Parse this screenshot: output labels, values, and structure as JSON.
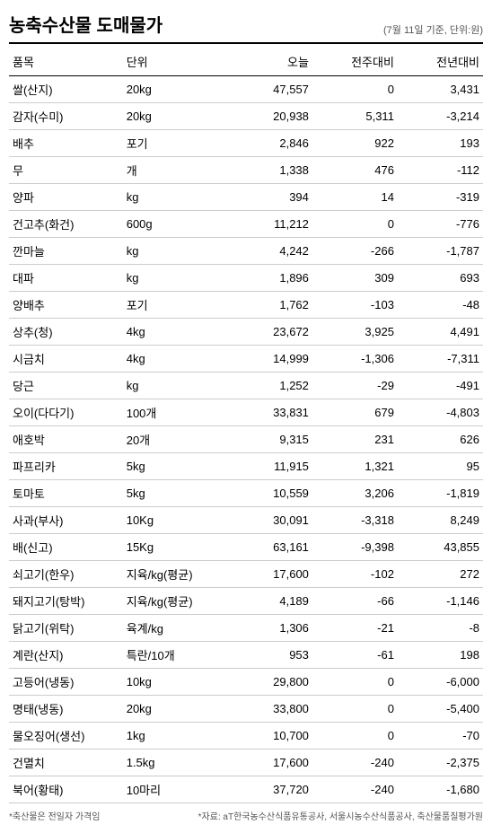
{
  "header": {
    "title": "농축수산물 도매물가",
    "subtitle": "(7월 11일 기준, 단위:원)"
  },
  "table": {
    "columns": [
      "품목",
      "단위",
      "오늘",
      "전주대비",
      "전년대비"
    ],
    "rows": [
      [
        "쌀(산지)",
        "20kg",
        "47,557",
        "0",
        "3,431"
      ],
      [
        "감자(수미)",
        "20kg",
        "20,938",
        "5,311",
        "-3,214"
      ],
      [
        "배추",
        "포기",
        "2,846",
        "922",
        "193"
      ],
      [
        "무",
        "개",
        "1,338",
        "476",
        "-112"
      ],
      [
        "양파",
        "kg",
        "394",
        "14",
        "-319"
      ],
      [
        "건고추(화건)",
        "600g",
        "11,212",
        "0",
        "-776"
      ],
      [
        "깐마늘",
        "kg",
        "4,242",
        "-266",
        "-1,787"
      ],
      [
        "대파",
        "kg",
        "1,896",
        "309",
        "693"
      ],
      [
        "양배추",
        "포기",
        "1,762",
        "-103",
        "-48"
      ],
      [
        "상추(청)",
        "4kg",
        "23,672",
        "3,925",
        "4,491"
      ],
      [
        "시금치",
        "4kg",
        "14,999",
        "-1,306",
        "-7,311"
      ],
      [
        "당근",
        "kg",
        "1,252",
        "-29",
        "-491"
      ],
      [
        "오이(다다기)",
        "100개",
        "33,831",
        "679",
        "-4,803"
      ],
      [
        "애호박",
        "20개",
        "9,315",
        "231",
        "626"
      ],
      [
        "파프리카",
        "5kg",
        "11,915",
        "1,321",
        "95"
      ],
      [
        "토마토",
        "5kg",
        "10,559",
        "3,206",
        "-1,819"
      ],
      [
        "사과(부사)",
        "10Kg",
        "30,091",
        "-3,318",
        "8,249"
      ],
      [
        "배(신고)",
        "15Kg",
        "63,161",
        "-9,398",
        "43,855"
      ],
      [
        "쇠고기(한우)",
        "지육/kg(평균)",
        "17,600",
        "-102",
        "272"
      ],
      [
        "돼지고기(탕박)",
        "지육/kg(평균)",
        "4,189",
        "-66",
        "-1,146"
      ],
      [
        "닭고기(위탁)",
        "육계/kg",
        "1,306",
        "-21",
        "-8"
      ],
      [
        "계란(산지)",
        "특란/10개",
        "953",
        "-61",
        "198"
      ],
      [
        "고등어(냉동)",
        "10kg",
        "29,800",
        "0",
        "-6,000"
      ],
      [
        "명태(냉동)",
        "20kg",
        "33,800",
        "0",
        "-5,400"
      ],
      [
        "물오징어(생선)",
        "1kg",
        "10,700",
        "0",
        "-70"
      ],
      [
        "건멸치",
        "1.5kg",
        "17,600",
        "-240",
        "-2,375"
      ],
      [
        "북어(황태)",
        "10마리",
        "37,720",
        "-240",
        "-1,680"
      ]
    ]
  },
  "footnotes": {
    "left": "*축산물은 전일자 가격임",
    "right": "*자료: aT한국농수산식품유통공사, 서울시농수산식품공사, 축산물품질평가원"
  }
}
